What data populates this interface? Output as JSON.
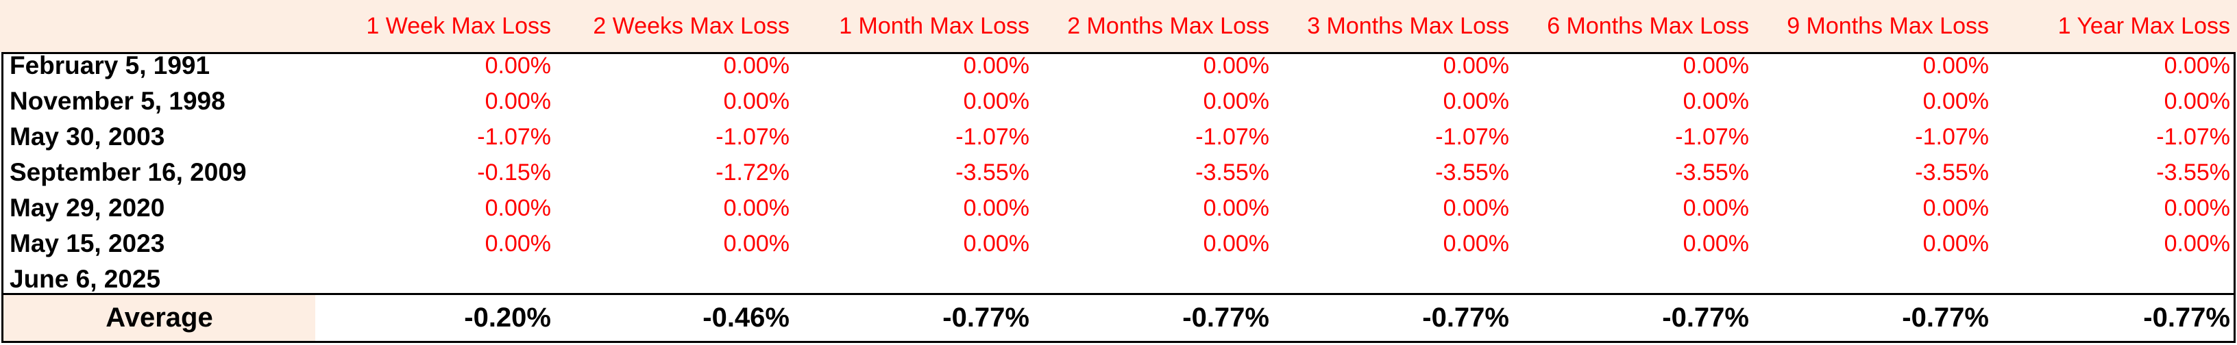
{
  "table": {
    "columns": [
      "1 Week Max Loss",
      "2 Weeks Max Loss",
      "1 Month Max Loss",
      "2 Months Max Loss",
      "3 Months Max Loss",
      "6 Months Max Loss",
      "9 Months Max Loss",
      "1 Year Max Loss"
    ],
    "rows": [
      {
        "date": "February 5, 1991",
        "values": [
          "0.00%",
          "0.00%",
          "0.00%",
          "0.00%",
          "0.00%",
          "0.00%",
          "0.00%",
          "0.00%"
        ]
      },
      {
        "date": "November 5, 1998",
        "values": [
          "0.00%",
          "0.00%",
          "0.00%",
          "0.00%",
          "0.00%",
          "0.00%",
          "0.00%",
          "0.00%"
        ]
      },
      {
        "date": "May 30, 2003",
        "values": [
          "-1.07%",
          "-1.07%",
          "-1.07%",
          "-1.07%",
          "-1.07%",
          "-1.07%",
          "-1.07%",
          "-1.07%"
        ]
      },
      {
        "date": "September 16, 2009",
        "values": [
          "-0.15%",
          "-1.72%",
          "-3.55%",
          "-3.55%",
          "-3.55%",
          "-3.55%",
          "-3.55%",
          "-3.55%"
        ]
      },
      {
        "date": "May 29, 2020",
        "values": [
          "0.00%",
          "0.00%",
          "0.00%",
          "0.00%",
          "0.00%",
          "0.00%",
          "0.00%",
          "0.00%"
        ]
      },
      {
        "date": "May 15, 2023",
        "values": [
          "0.00%",
          "0.00%",
          "0.00%",
          "0.00%",
          "0.00%",
          "0.00%",
          "0.00%",
          "0.00%"
        ]
      },
      {
        "date": "June 6, 2025",
        "values": [
          "",
          "",
          "",
          "",
          "",
          "",
          "",
          ""
        ]
      }
    ],
    "average": {
      "label": "Average",
      "values": [
        "-0.20%",
        "-0.46%",
        "-0.77%",
        "-0.77%",
        "-0.77%",
        "-0.77%",
        "-0.77%",
        "-0.77%"
      ]
    }
  },
  "colors": {
    "header_background": "#fdeee3",
    "value_text": "#ff0000",
    "label_text": "#000000",
    "border": "#000000"
  }
}
